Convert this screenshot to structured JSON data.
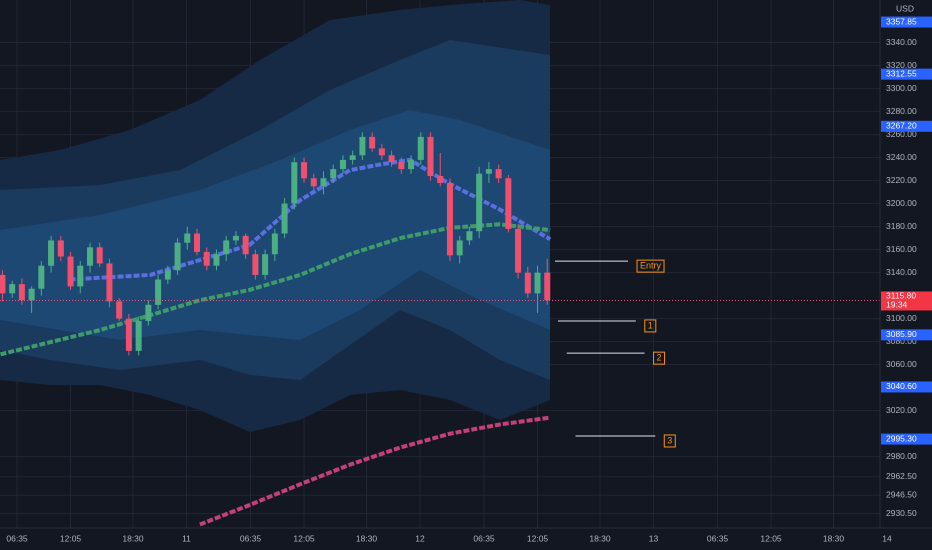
{
  "chart_data": {
    "type": "candlestick",
    "currency": "USD",
    "up_color": "#4caf84",
    "down_color": "#f0506e",
    "grid": true,
    "x": [
      -1.5,
      -0.5,
      0.5,
      1.5,
      2.5,
      3.5,
      4.5,
      5.5,
      6.5,
      7.5,
      8.5,
      9.5,
      10.5,
      11.5,
      12.5,
      13.5,
      14.5,
      15.5,
      16.5,
      17.5,
      18.5,
      19.5,
      20.5,
      21.5,
      22.5,
      23.5,
      24.5,
      25.5,
      26.5,
      27.5,
      28.5,
      29.5,
      30.5,
      31.5,
      32.5,
      33.5,
      34.5,
      35.5,
      36.5,
      37.5,
      38.5,
      39.5,
      40.5,
      41.5,
      42.5,
      43.5,
      44.5,
      45.5,
      46.5,
      47.5,
      48.5,
      49.5,
      50.5,
      51.5,
      52.5,
      53.5,
      54.5
    ],
    "open": [
      3138,
      3122,
      3130,
      3116,
      3126,
      3146,
      3168,
      3154,
      3128,
      3146,
      3162,
      3148,
      3115,
      3100,
      3072,
      3098,
      3112,
      3134,
      3142,
      3166,
      3174,
      3158,
      3146,
      3156,
      3168,
      3172,
      3156,
      3138,
      3156,
      3174,
      3200,
      3236,
      3222,
      3215,
      3222,
      3230,
      3238,
      3242,
      3258,
      3248,
      3242,
      3236,
      3230,
      3238,
      3258,
      3224,
      3218,
      3155,
      3168,
      3176,
      3226,
      3230,
      3222,
      3178,
      3140,
      3122,
      3140
    ],
    "high": [
      3142,
      3133,
      3135,
      3128,
      3150,
      3172,
      3172,
      3158,
      3150,
      3166,
      3166,
      3152,
      3118,
      3104,
      3102,
      3116,
      3138,
      3146,
      3170,
      3180,
      3178,
      3162,
      3160,
      3172,
      3176,
      3174,
      3160,
      3160,
      3178,
      3205,
      3240,
      3240,
      3226,
      3228,
      3234,
      3242,
      3246,
      3262,
      3262,
      3252,
      3246,
      3240,
      3242,
      3262,
      3262,
      3244,
      3222,
      3172,
      3180,
      3232,
      3236,
      3234,
      3225,
      3182,
      3145,
      3146,
      3152
    ],
    "low": [
      3115,
      3118,
      3112,
      3105,
      3120,
      3140,
      3150,
      3125,
      3122,
      3140,
      3145,
      3110,
      3098,
      3068,
      3068,
      3094,
      3108,
      3130,
      3138,
      3160,
      3155,
      3142,
      3142,
      3150,
      3164,
      3152,
      3134,
      3134,
      3150,
      3170,
      3195,
      3218,
      3212,
      3208,
      3218,
      3226,
      3234,
      3238,
      3245,
      3238,
      3232,
      3226,
      3226,
      3234,
      3220,
      3215,
      3150,
      3148,
      3164,
      3170,
      3218,
      3218,
      3175,
      3135,
      3118,
      3105,
      3112
    ],
    "close": [
      3122,
      3130,
      3116,
      3126,
      3146,
      3168,
      3154,
      3128,
      3146,
      3162,
      3148,
      3115,
      3100,
      3072,
      3098,
      3112,
      3134,
      3142,
      3166,
      3174,
      3158,
      3146,
      3156,
      3168,
      3172,
      3156,
      3138,
      3156,
      3174,
      3200,
      3236,
      3222,
      3215,
      3222,
      3230,
      3238,
      3242,
      3258,
      3248,
      3242,
      3236,
      3230,
      3238,
      3258,
      3224,
      3218,
      3155,
      3168,
      3176,
      3226,
      3230,
      3222,
      3178,
      3140,
      3122,
      3140,
      3116
    ],
    "overlays": [
      {
        "color": "#5b6fe0",
        "x": [
          5.4,
          13.7,
          18.8,
          23.9,
          29.1,
          34.2,
          37.3,
          40.4,
          44.5,
          49.6,
          54.8
        ],
        "values": [
          3134,
          3138,
          3151,
          3164,
          3203,
          3229,
          3234,
          3238,
          3217,
          3195,
          3169
        ]
      },
      {
        "color": "#3f9a6c",
        "x": [
          -1.7,
          8.5,
          13.7,
          18.8,
          23.9,
          29.1,
          34.2,
          39.4,
          44.5,
          49.6,
          54.8
        ],
        "values": [
          3069,
          3090,
          3103,
          3116,
          3125,
          3138,
          3156,
          3170,
          3179,
          3182,
          3177
        ]
      },
      {
        "color": "#c2417a",
        "x": [
          18.8,
          23.9,
          29.1,
          34.2,
          39.4,
          44.5,
          49.6,
          54.8
        ],
        "values": [
          2921,
          2938,
          2956,
          2973,
          2988,
          3000,
          3008,
          3014
        ]
      }
    ],
    "levels": [
      {
        "label": "Entry",
        "value": 3150,
        "x": [
          55.3,
          62.8
        ]
      },
      {
        "label": "1",
        "value": 3098,
        "x": [
          55.6,
          63.6
        ]
      },
      {
        "label": "2",
        "value": 3070,
        "x": [
          56.5,
          64.5
        ]
      },
      {
        "label": "3",
        "value": 2998,
        "x": [
          57.4,
          65.6
        ]
      }
    ],
    "current": {
      "value": 3115.8,
      "label": "3115.80",
      "countdown": "19:34"
    },
    "price_tags": [
      3357.85,
      3312.55,
      {
        "value": 3267.2,
        "label": "3267.20"
      },
      {
        "value": 3085.9,
        "label": "3085.90"
      },
      {
        "value": 3040.6,
        "label": "3040.60"
      },
      {
        "value": 2995.3,
        "label": "2995.30"
      }
    ],
    "xlim": [
      -1.75,
      88.7
    ],
    "ylim": [
      2918,
      3377
    ],
    "xticks": [
      {
        "value": 0,
        "label": "06:35"
      },
      {
        "value": 5.5,
        "label": "12:05"
      },
      {
        "value": 11.92,
        "label": "18:30"
      },
      {
        "value": 17.42,
        "label": "11"
      },
      {
        "value": 24,
        "label": "06:35"
      },
      {
        "value": 29.5,
        "label": "12:05"
      },
      {
        "value": 35.92,
        "label": "18:30"
      },
      {
        "value": 41.42,
        "label": "12"
      },
      {
        "value": 48,
        "label": "06:35"
      },
      {
        "value": 53.5,
        "label": "12:05"
      },
      {
        "value": 59.92,
        "label": "18:30"
      },
      {
        "value": 65.42,
        "label": "13"
      },
      {
        "value": 72,
        "label": "06:35"
      },
      {
        "value": 77.5,
        "label": "12:05"
      },
      {
        "value": 83.92,
        "label": "18:30"
      },
      {
        "value": 89.42,
        "label": "14"
      }
    ],
    "yticks": [
      {
        "value": 3340,
        "label": "3340.00"
      },
      {
        "value": 3320,
        "label": "3320.00"
      },
      {
        "value": 3300,
        "label": "3300.00"
      },
      {
        "value": 3280,
        "label": "3280.00"
      },
      {
        "value": 3260,
        "label": "3260.00"
      },
      {
        "value": 3240,
        "label": "3240.00"
      },
      {
        "value": 3220,
        "label": "3220.00"
      },
      {
        "value": 3200,
        "label": "3200.00"
      },
      {
        "value": 3180,
        "label": "3180.00"
      },
      {
        "value": 3160,
        "label": "3160.00"
      },
      {
        "value": 3140,
        "label": "3140.00"
      },
      {
        "value": 3100,
        "label": "3100.00"
      },
      {
        "value": 3080,
        "label": "3080.00"
      },
      {
        "value": 3060,
        "label": "3060.00"
      },
      {
        "value": 3020,
        "label": "3020.00"
      },
      {
        "value": 2980,
        "label": "2980.00"
      },
      {
        "value": 2962.5,
        "label": "2962.50"
      },
      {
        "value": 2946.5,
        "label": "2946.50"
      },
      {
        "value": 2930.5,
        "label": "2930.50"
      }
    ]
  }
}
